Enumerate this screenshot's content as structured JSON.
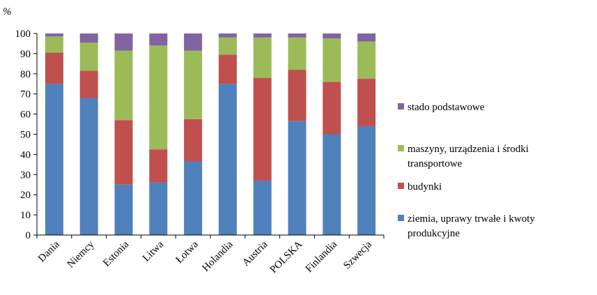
{
  "chart_data": {
    "type": "bar",
    "stacked": true,
    "unit_label": "%",
    "ylim": [
      0,
      100
    ],
    "yticks": [
      "0",
      "10",
      "20",
      "30",
      "40",
      "50",
      "60",
      "70",
      "80",
      "90",
      "100"
    ],
    "grid": false,
    "legend_position": "right",
    "categories": [
      "Dania",
      "Niemcy",
      "Estonia",
      "Litwa",
      "Łotwa",
      "Holandia",
      "Austria",
      "POLSKA",
      "Finlandia",
      "Szwecja"
    ],
    "series": [
      {
        "name": "ziemia, uprawy trwałe i kwoty produkcyjne",
        "color": "#4F81BD",
        "values": [
          75,
          68,
          25,
          26,
          36.5,
          75,
          27,
          56.5,
          50,
          54
        ]
      },
      {
        "name": "budynki",
        "color": "#C0504D",
        "values": [
          15.5,
          13.5,
          32,
          16.5,
          21,
          14.5,
          51,
          25.5,
          26,
          23.5
        ]
      },
      {
        "name": "maszyny, urządzenia i środki transportowe",
        "color": "#9BBB59",
        "values": [
          8,
          14,
          34.5,
          51.5,
          34,
          8.5,
          20,
          16,
          21.5,
          18.5
        ]
      },
      {
        "name": "stado podstawowe",
        "color": "#8064A2",
        "values": [
          1.5,
          4.5,
          8.5,
          6,
          8.5,
          2,
          2,
          2,
          2.5,
          4
        ]
      }
    ]
  }
}
